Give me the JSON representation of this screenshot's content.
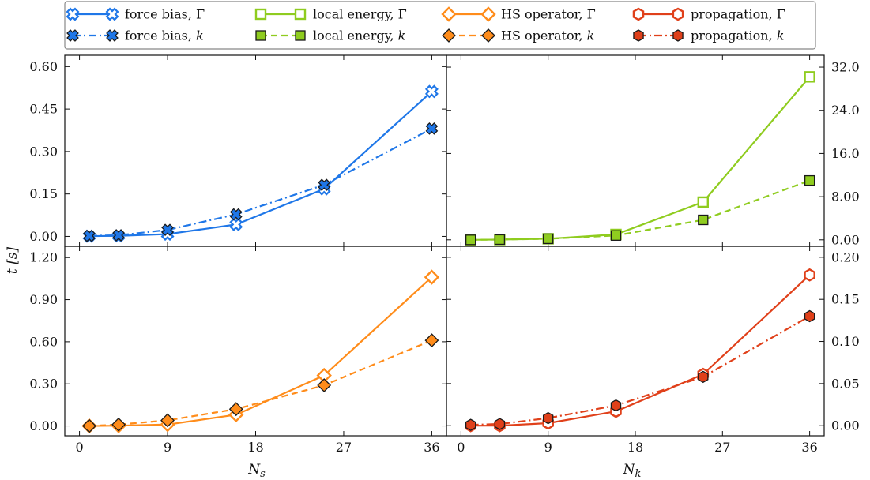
{
  "chart_data": [
    {
      "type": "line",
      "panel": "top-left",
      "x_axis": {
        "label": "",
        "ticks": [
          "0",
          "9",
          "18",
          "27",
          "36"
        ],
        "tick_values": [
          0,
          9,
          18,
          27,
          36
        ],
        "range": [
          -1.5,
          37.5
        ]
      },
      "y_axis": {
        "label": "t [s]",
        "side": "left",
        "ticks": [
          "0.00",
          "0.15",
          "0.30",
          "0.45",
          "0.60"
        ],
        "tick_values": [
          0,
          0.15,
          0.3,
          0.45,
          0.6
        ],
        "range": [
          -0.035,
          0.64
        ]
      },
      "series": [
        {
          "name": "force bias, Γ",
          "color": "#1f77e8",
          "dash": "solid",
          "marker": "x-open",
          "x": [
            1,
            4,
            9,
            16,
            25,
            36
          ],
          "y": [
            0.001,
            0.002,
            0.008,
            0.042,
            0.168,
            0.512
          ]
        },
        {
          "name": "force bias, k",
          "color": "#1f77e8",
          "dash": "dashdot",
          "marker": "x-filled",
          "x": [
            1,
            4,
            9,
            16,
            25,
            36
          ],
          "y": [
            0.002,
            0.004,
            0.023,
            0.078,
            0.182,
            0.381
          ]
        }
      ]
    },
    {
      "type": "line",
      "panel": "top-right",
      "x_axis": {
        "label": "",
        "ticks": [
          "0",
          "9",
          "18",
          "27",
          "36"
        ],
        "tick_values": [
          0,
          9,
          18,
          27,
          36
        ],
        "range": [
          -1.5,
          37.5
        ]
      },
      "y_axis": {
        "label": "",
        "side": "right",
        "ticks": [
          "0.00",
          "8.00",
          "16.0",
          "24.0",
          "32.0"
        ],
        "tick_values": [
          0,
          8,
          16,
          24,
          32
        ],
        "range": [
          -1.2,
          34.2
        ]
      },
      "series": [
        {
          "name": "local energy, Γ",
          "color": "#8fcc1f",
          "dash": "solid",
          "marker": "square-open",
          "x": [
            1,
            4,
            9,
            16,
            25,
            36
          ],
          "y": [
            0.0,
            0.05,
            0.2,
            1.0,
            7.0,
            30.2
          ]
        },
        {
          "name": "local energy, k",
          "color": "#8fcc1f",
          "dash": "dashed",
          "marker": "square-filled",
          "x": [
            1,
            4,
            9,
            16,
            25,
            36
          ],
          "y": [
            0.0,
            0.05,
            0.2,
            0.8,
            3.7,
            11.0
          ]
        }
      ]
    },
    {
      "type": "line",
      "panel": "bottom-left",
      "x_axis": {
        "label": "N_s",
        "ticks": [
          "0",
          "9",
          "18",
          "27",
          "36"
        ],
        "tick_values": [
          0,
          9,
          18,
          27,
          36
        ],
        "range": [
          -1.5,
          37.5
        ]
      },
      "y_axis": {
        "label": "",
        "side": "left",
        "ticks": [
          "0.00",
          "0.30",
          "0.60",
          "0.90",
          "1.20"
        ],
        "tick_values": [
          0,
          0.3,
          0.6,
          0.9,
          1.2
        ],
        "range": [
          -0.07,
          1.28
        ]
      },
      "series": [
        {
          "name": "HS operator, Γ",
          "color": "#ff8c1a",
          "dash": "solid",
          "marker": "diamond-open",
          "x": [
            1,
            4,
            9,
            16,
            25,
            36
          ],
          "y": [
            0.0,
            0.002,
            0.01,
            0.08,
            0.36,
            1.06
          ]
        },
        {
          "name": "HS operator, k",
          "color": "#ff8c1a",
          "dash": "dashed",
          "marker": "diamond-filled",
          "x": [
            1,
            4,
            9,
            16,
            25,
            36
          ],
          "y": [
            0.0,
            0.01,
            0.04,
            0.12,
            0.29,
            0.61
          ]
        }
      ]
    },
    {
      "type": "line",
      "panel": "bottom-right",
      "x_axis": {
        "label": "N_k",
        "ticks": [
          "0",
          "9",
          "18",
          "27",
          "36"
        ],
        "tick_values": [
          0,
          9,
          18,
          27,
          36
        ],
        "range": [
          -1.5,
          37.5
        ]
      },
      "y_axis": {
        "label": "",
        "side": "right",
        "ticks": [
          "0.00",
          "0.05",
          "0.10",
          "0.15",
          "0.20"
        ],
        "tick_values": [
          0,
          0.05,
          0.1,
          0.15,
          0.2
        ],
        "range": [
          -0.012,
          0.213
        ]
      },
      "series": [
        {
          "name": "propagation, Γ",
          "color": "#e0401a",
          "dash": "solid",
          "marker": "hexagon-open",
          "x": [
            1,
            4,
            9,
            16,
            25,
            36
          ],
          "y": [
            0.0,
            0.0,
            0.003,
            0.017,
            0.061,
            0.179
          ]
        },
        {
          "name": "propagation, k",
          "color": "#e0401a",
          "dash": "dashdot",
          "marker": "hexagon-filled",
          "x": [
            1,
            4,
            9,
            16,
            25,
            36
          ],
          "y": [
            0.001,
            0.002,
            0.009,
            0.024,
            0.058,
            0.13
          ]
        }
      ]
    }
  ],
  "legend": {
    "placement": "top",
    "entries": [
      [
        "force bias, Γ",
        "local energy, Γ",
        "HS operator, Γ",
        "propagation, Γ"
      ],
      [
        "force bias, k",
        "local energy, k",
        "HS operator, k",
        "propagation, k"
      ]
    ]
  }
}
